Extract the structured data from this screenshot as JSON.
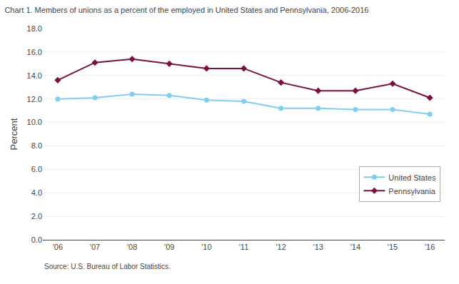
{
  "chart_data": {
    "type": "line",
    "title": "Chart 1. Members of unions as a percent of the employed in United States and Pennsylvania, 2006-2016",
    "y_label": "Percent",
    "source": "Source: U.S. Bureau of Labor Statistics.",
    "x": [
      2006,
      2007,
      2008,
      2009,
      2010,
      2011,
      2012,
      2013,
      2014,
      2015,
      2016
    ],
    "series": [
      {
        "name": "United States",
        "color": "#7ecfed",
        "marker": "circle",
        "values": [
          12.0,
          12.1,
          12.4,
          12.3,
          11.9,
          11.8,
          11.2,
          11.2,
          11.1,
          11.1,
          10.7
        ]
      },
      {
        "name": "Pennsylvania",
        "color": "#7b1040",
        "marker": "diamond",
        "values": [
          13.6,
          15.1,
          15.4,
          15.0,
          14.6,
          14.6,
          13.4,
          12.7,
          12.7,
          13.3,
          12.1
        ]
      }
    ],
    "xlim": [
      2005.6,
      2016.4
    ],
    "xticks": [
      {
        "value": 2006,
        "label": "'06"
      },
      {
        "value": 2007,
        "label": "'07"
      },
      {
        "value": 2008,
        "label": "'08"
      },
      {
        "value": 2009,
        "label": "'09"
      },
      {
        "value": 2010,
        "label": "'10"
      },
      {
        "value": 2011,
        "label": "'11"
      },
      {
        "value": 2012,
        "label": "'12"
      },
      {
        "value": 2013,
        "label": "'13"
      },
      {
        "value": 2014,
        "label": "'14"
      },
      {
        "value": 2015,
        "label": "'15"
      },
      {
        "value": 2016,
        "label": "'16"
      }
    ],
    "ylim": [
      0.0,
      18.0
    ],
    "yticks": [
      {
        "value": 0.0,
        "label": "0.0"
      },
      {
        "value": 2.0,
        "label": "2.0"
      },
      {
        "value": 4.0,
        "label": "4.0"
      },
      {
        "value": 6.0,
        "label": "6.0"
      },
      {
        "value": 8.0,
        "label": "8.0"
      },
      {
        "value": 10.0,
        "label": "10.0"
      },
      {
        "value": 12.0,
        "label": "12.0"
      },
      {
        "value": 14.0,
        "label": "14.0"
      },
      {
        "value": 16.0,
        "label": "16.0"
      },
      {
        "value": 18.0,
        "label": "18.0"
      }
    ],
    "grid": "y",
    "legend": "lower right"
  }
}
